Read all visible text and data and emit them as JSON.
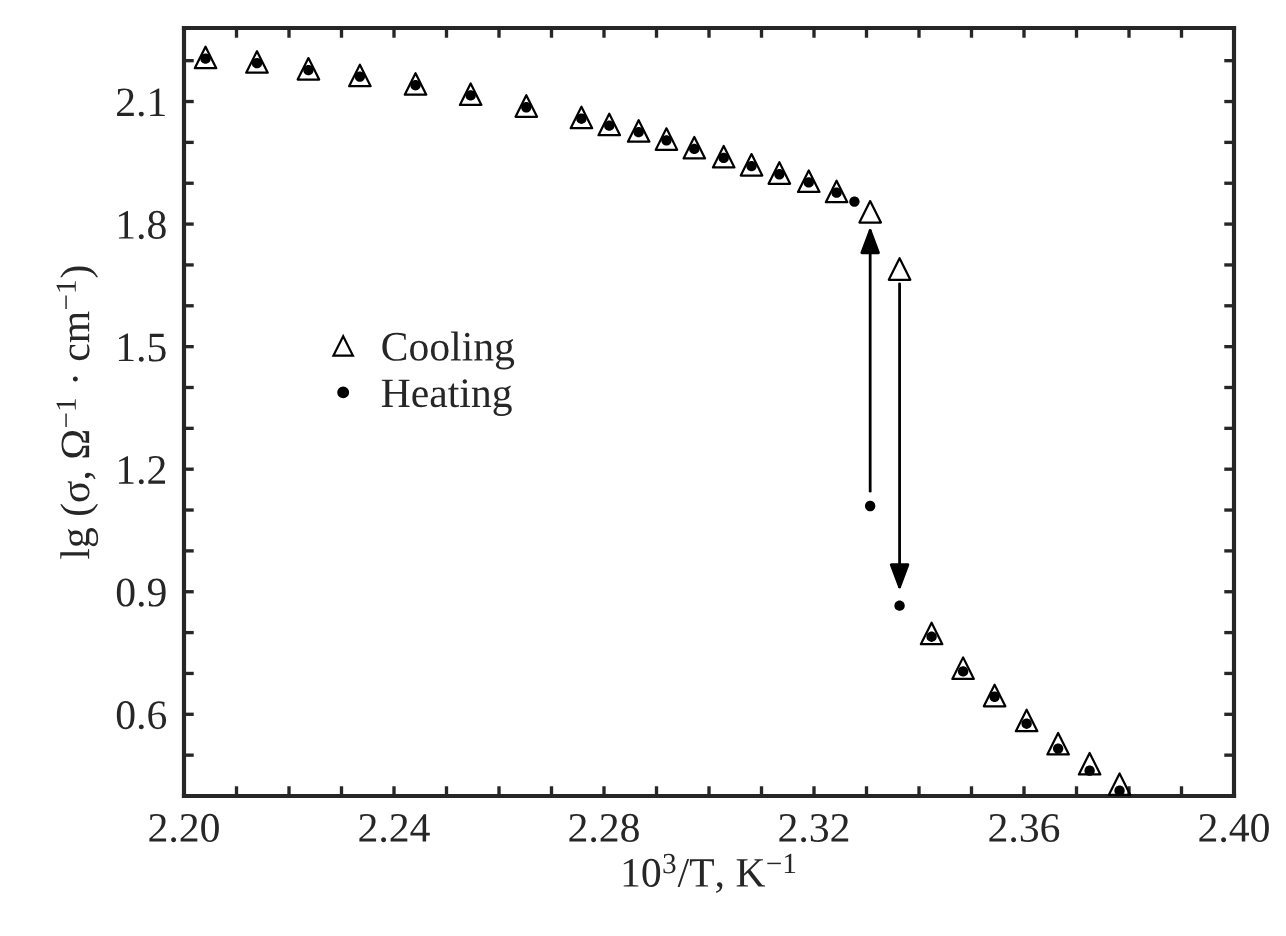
{
  "chart_data": {
    "type": "scatter",
    "xlabel": "10$^{3}$/T, K$^{−1}$",
    "ylabel": "lg (σ, Ω$^{−1}$ · cm$^{−1}$)",
    "series": [
      {
        "name": "Cooling",
        "color": "#000000",
        "marker": "triangle",
        "x": [
          2.2041,
          2.2139,
          2.2237,
          2.2335,
          2.2441,
          2.2546,
          2.2652,
          2.2757,
          2.281,
          2.2866,
          2.2919,
          2.2972,
          2.3028,
          2.3081,
          2.3134,
          2.319,
          2.3243,
          2.3307,
          2.3363,
          2.3424,
          2.3484,
          2.3544,
          2.3605,
          2.3665,
          2.3725,
          2.3782
        ],
        "values": [
          2.208,
          2.197,
          2.18,
          2.164,
          2.143,
          2.118,
          2.089,
          2.061,
          2.044,
          2.028,
          2.008,
          1.987,
          1.965,
          1.945,
          1.925,
          1.905,
          1.88,
          1.83,
          1.69,
          0.798,
          0.713,
          0.646,
          0.585,
          0.528,
          0.479,
          0.429
        ]
      },
      {
        "name": "Heating",
        "color": "#000000",
        "marker": "circle",
        "x": [
          2.2041,
          2.2139,
          2.2237,
          2.2335,
          2.2441,
          2.2546,
          2.2652,
          2.2757,
          2.281,
          2.2866,
          2.2919,
          2.2972,
          2.3028,
          2.3081,
          2.3134,
          2.319,
          2.3243,
          2.3277,
          2.3307,
          2.3363,
          2.3424,
          2.3484,
          2.3544,
          2.3605,
          2.3665,
          2.3725,
          2.3782
        ],
        "values": [
          2.205,
          2.194,
          2.177,
          2.161,
          2.14,
          2.115,
          2.086,
          2.058,
          2.041,
          2.025,
          2.005,
          1.984,
          1.962,
          1.942,
          1.922,
          1.902,
          1.877,
          1.855,
          1.11,
          0.866,
          0.79,
          0.705,
          0.643,
          0.577,
          0.516,
          0.462,
          0.413
        ]
      }
    ],
    "xlim": [
      2.2,
      2.4
    ],
    "xticks": [
      {
        "value": 2.2,
        "label": "2.20"
      },
      {
        "value": 2.21,
        "label": null
      },
      {
        "value": 2.22,
        "label": null
      },
      {
        "value": 2.23,
        "label": null
      },
      {
        "value": 2.24,
        "label": "2.24"
      },
      {
        "value": 2.25,
        "label": null
      },
      {
        "value": 2.26,
        "label": null
      },
      {
        "value": 2.27,
        "label": null
      },
      {
        "value": 2.28,
        "label": "2.28"
      },
      {
        "value": 2.29,
        "label": null
      },
      {
        "value": 2.3,
        "label": null
      },
      {
        "value": 2.31,
        "label": null
      },
      {
        "value": 2.32,
        "label": "2.32"
      },
      {
        "value": 2.33,
        "label": null
      },
      {
        "value": 2.34,
        "label": null
      },
      {
        "value": 2.35,
        "label": null
      },
      {
        "value": 2.36,
        "label": "2.36"
      },
      {
        "value": 2.37,
        "label": null
      },
      {
        "value": 2.38,
        "label": null
      },
      {
        "value": 2.39,
        "label": null
      },
      {
        "value": 2.4,
        "label": "2.40"
      }
    ],
    "ylim": [
      0.4,
      2.28
    ],
    "yticks": [
      {
        "value": 0.5,
        "label": null
      },
      0.6,
      {
        "value": 0.7,
        "label": null
      },
      {
        "value": 0.8,
        "label": null
      },
      0.9,
      {
        "value": 1.0,
        "label": null
      },
      {
        "value": 1.1,
        "label": null
      },
      1.2,
      {
        "value": 1.3,
        "label": null
      },
      {
        "value": 1.4,
        "label": null
      },
      1.5,
      {
        "value": 1.6,
        "label": null
      },
      {
        "value": 1.7,
        "label": null
      },
      1.8,
      {
        "value": 1.9,
        "label": null
      },
      {
        "value": 2.0,
        "label": null
      },
      2.1,
      {
        "value": 2.2,
        "label": null
      }
    ],
    "grid": false,
    "legend": "center left"
  }
}
